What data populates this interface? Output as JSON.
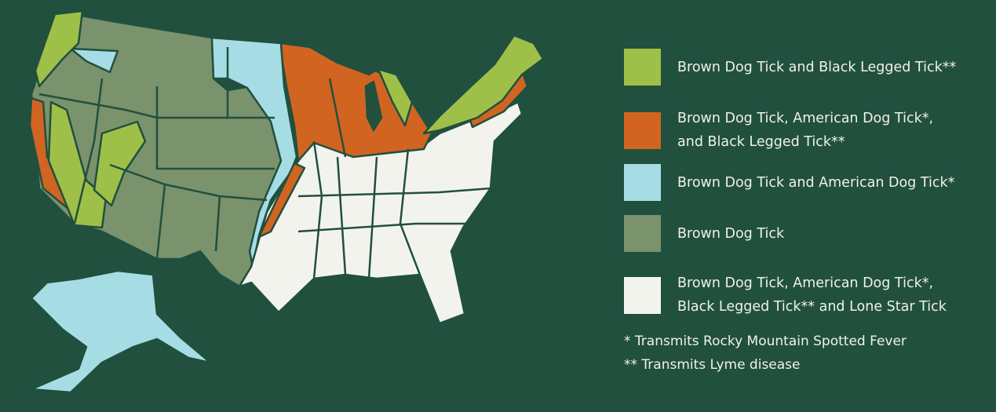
{
  "legend": [
    {
      "label_lines": [
        "Brown Dog Tick and Black Legged Tick**"
      ],
      "color": "#9fc048"
    },
    {
      "label_lines": [
        "Brown Dog Tick, American Dog Tick*,",
        "and Black Legged Tick**"
      ],
      "color": "#d26421"
    },
    {
      "label_lines": [
        "Brown Dog Tick and American Dog Tick*"
      ],
      "color": "#a6dde5"
    },
    {
      "label_lines": [
        "Brown Dog Tick"
      ],
      "color": "#7a936c"
    },
    {
      "label_lines": [
        "Brown Dog Tick, American Dog Tick*,",
        "Black Legged Tick** and Lone Star Tick"
      ],
      "color": "#f3f3ee"
    }
  ],
  "footnotes": [
    "* Transmits Rocky Mountain Spotted Fever",
    "** Transmits Lyme disease"
  ],
  "colors": {
    "background": "#21503f",
    "border": "#21503f"
  }
}
